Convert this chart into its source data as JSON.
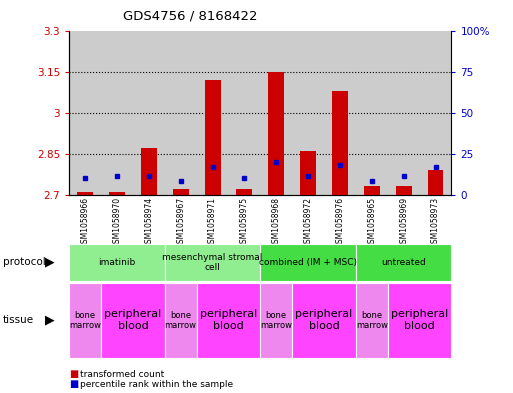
{
  "title": "GDS4756 / 8168422",
  "samples": [
    "GSM1058966",
    "GSM1058970",
    "GSM1058974",
    "GSM1058967",
    "GSM1058971",
    "GSM1058975",
    "GSM1058968",
    "GSM1058972",
    "GSM1058976",
    "GSM1058965",
    "GSM1058969",
    "GSM1058973"
  ],
  "red_values": [
    2.71,
    2.71,
    2.87,
    2.72,
    3.12,
    2.72,
    3.15,
    2.86,
    3.08,
    2.73,
    2.73,
    2.79
  ],
  "blue_values": [
    2.76,
    2.77,
    2.77,
    2.75,
    2.8,
    2.76,
    2.82,
    2.77,
    2.81,
    2.75,
    2.77,
    2.8
  ],
  "y_min": 2.7,
  "y_max": 3.3,
  "y_ticks": [
    2.7,
    2.85,
    3.0,
    3.15,
    3.3
  ],
  "y_tick_labels": [
    "2.7",
    "2.85",
    "3",
    "3.15",
    "3.3"
  ],
  "y2_ticks": [
    0,
    25,
    50,
    75,
    100
  ],
  "y2_tick_labels": [
    "0",
    "25",
    "50",
    "75",
    "100%"
  ],
  "protocols": [
    {
      "label": "imatinib",
      "start": 0,
      "end": 3,
      "color": "#90ee90"
    },
    {
      "label": "mesenchymal stromal\ncell",
      "start": 3,
      "end": 6,
      "color": "#90ee90"
    },
    {
      "label": "combined (IM + MSC)",
      "start": 6,
      "end": 9,
      "color": "#44dd44"
    },
    {
      "label": "untreated",
      "start": 9,
      "end": 12,
      "color": "#44dd44"
    }
  ],
  "tissues": [
    {
      "label": "bone\nmarrow",
      "start": 0,
      "end": 1,
      "color": "#ee88ee",
      "fontsize": 6
    },
    {
      "label": "peripheral\nblood",
      "start": 1,
      "end": 3,
      "color": "#ff44ff",
      "fontsize": 8
    },
    {
      "label": "bone\nmarrow",
      "start": 3,
      "end": 4,
      "color": "#ee88ee",
      "fontsize": 6
    },
    {
      "label": "peripheral\nblood",
      "start": 4,
      "end": 6,
      "color": "#ff44ff",
      "fontsize": 8
    },
    {
      "label": "bone\nmarrow",
      "start": 6,
      "end": 7,
      "color": "#ee88ee",
      "fontsize": 6
    },
    {
      "label": "peripheral\nblood",
      "start": 7,
      "end": 9,
      "color": "#ff44ff",
      "fontsize": 8
    },
    {
      "label": "bone\nmarrow",
      "start": 9,
      "end": 10,
      "color": "#ee88ee",
      "fontsize": 6
    },
    {
      "label": "peripheral\nblood",
      "start": 10,
      "end": 12,
      "color": "#ff44ff",
      "fontsize": 8
    }
  ],
  "bar_color": "#cc0000",
  "blue_color": "#0000cc",
  "bg_color": "#cccccc",
  "left_label_color": "#cc0000",
  "right_label_color": "#0000cc",
  "grid_lines": [
    2.85,
    3.0,
    3.15
  ]
}
